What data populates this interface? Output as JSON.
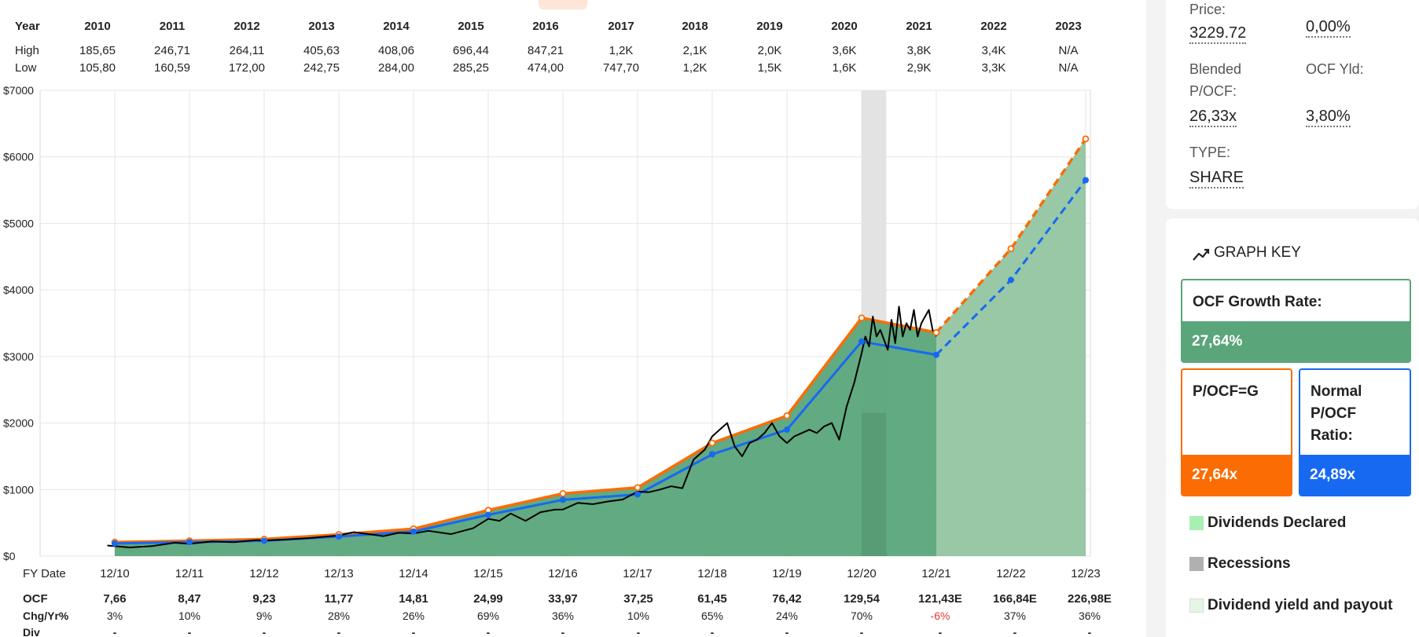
{
  "table": {
    "labels": {
      "year": "Year",
      "high": "High",
      "low": "Low"
    },
    "years": [
      "2010",
      "2011",
      "2012",
      "2013",
      "2014",
      "2015",
      "2016",
      "2017",
      "2018",
      "2019",
      "2020",
      "2021",
      "2022",
      "2023"
    ],
    "high": [
      "185,65",
      "246,71",
      "264,11",
      "405,63",
      "408,06",
      "696,44",
      "847,21",
      "1,2K",
      "2,1K",
      "2,0K",
      "3,6K",
      "3,8K",
      "3,4K",
      "N/A"
    ],
    "low": [
      "105,80",
      "160,59",
      "172,00",
      "242,75",
      "284,00",
      "285,25",
      "474,00",
      "747,70",
      "1,2K",
      "1,5K",
      "1,6K",
      "2,9K",
      "3,3K",
      "N/A"
    ]
  },
  "bottom": {
    "labels": {
      "ocf": "OCF",
      "chg": "Chg/Yr%",
      "div": "Div"
    },
    "ocf": [
      "7,66",
      "8,47",
      "9,23",
      "11,77",
      "14,81",
      "24,99",
      "33,97",
      "37,25",
      "61,45",
      "76,42",
      "129,54",
      "121,43E",
      "166,84E",
      "226,98E"
    ],
    "chg": [
      "3%",
      "10%",
      "9%",
      "28%",
      "26%",
      "69%",
      "36%",
      "10%",
      "65%",
      "24%",
      "70%",
      "-6%",
      "37%",
      "36%"
    ],
    "div": [
      "-",
      "-",
      "-",
      "-",
      "-",
      "-",
      "-",
      "-",
      "-",
      "-",
      "-",
      "-",
      "-",
      "-"
    ]
  },
  "chart_data": {
    "type": "line",
    "x_axis_title": "FY Date",
    "x_ticks": [
      "12/10",
      "12/11",
      "12/12",
      "12/13",
      "12/14",
      "12/15",
      "12/16",
      "12/17",
      "12/18",
      "12/19",
      "12/20",
      "12/21",
      "12/22",
      "12/23"
    ],
    "y_ticks": [
      "$0",
      "$1000",
      "$2000",
      "$3000",
      "$4000",
      "$5000",
      "$6000",
      "$7000"
    ],
    "ylim": [
      0,
      7000
    ],
    "grid": true,
    "colors": {
      "pocf_g": "#fb6c03",
      "normal": "#1769f2",
      "price": "#000000",
      "fill": "#5aa57a",
      "fill_estimate": "#98c8a6",
      "recession": "#e3e3e3"
    },
    "recession": [
      2020.0,
      2020.33
    ],
    "series": [
      {
        "name": "P/OCF=G",
        "x": [
          2010.0,
          2011.0,
          2012.0,
          2013.0,
          2014.0,
          2015.0,
          2016.0,
          2017.0,
          2018.0,
          2019.0,
          2020.0,
          2021.0
        ],
        "values": [
          210,
          230,
          255,
          325,
          410,
          690,
          940,
          1030,
          1700,
          2110,
          3580,
          3360
        ],
        "estimate_x": [
          2021.0,
          2022.0,
          2023.0
        ],
        "estimate_values": [
          3360,
          4620,
          6270
        ]
      },
      {
        "name": "Normal P/OCF Ratio",
        "x": [
          2010.0,
          2011.0,
          2012.0,
          2013.0,
          2014.0,
          2015.0,
          2016.0,
          2017.0,
          2018.0,
          2019.0,
          2020.0,
          2021.0
        ],
        "values": [
          190,
          210,
          230,
          293,
          369,
          620,
          845,
          927,
          1530,
          1900,
          3225,
          3025
        ],
        "estimate_x": [
          2021.0,
          2022.0,
          2023.0
        ],
        "estimate_values": [
          3025,
          4150,
          5650
        ]
      },
      {
        "name": "Price",
        "x": [
          2009.9,
          2010.2,
          2010.5,
          2010.8,
          2011.0,
          2011.3,
          2011.6,
          2011.9,
          2012.0,
          2012.3,
          2012.6,
          2012.8,
          2013.0,
          2013.2,
          2013.4,
          2013.6,
          2013.8,
          2014.0,
          2014.2,
          2014.5,
          2014.8,
          2015.0,
          2015.15,
          2015.3,
          2015.5,
          2015.7,
          2015.9,
          2016.0,
          2016.2,
          2016.4,
          2016.6,
          2016.8,
          2017.0,
          2017.15,
          2017.3,
          2017.45,
          2017.6,
          2017.75,
          2017.9,
          2018.0,
          2018.1,
          2018.2,
          2018.3,
          2018.4,
          2018.5,
          2018.6,
          2018.7,
          2018.8,
          2018.9,
          2019.0,
          2019.1,
          2019.2,
          2019.3,
          2019.4,
          2019.5,
          2019.6,
          2019.7,
          2019.8,
          2019.9,
          2020.0,
          2020.05,
          2020.1,
          2020.15,
          2020.2,
          2020.25,
          2020.3,
          2020.35,
          2020.4,
          2020.45,
          2020.5,
          2020.55,
          2020.6,
          2020.65,
          2020.7,
          2020.75,
          2020.8,
          2020.85,
          2020.9,
          2020.95,
          2021.0
        ],
        "values": [
          160,
          130,
          150,
          200,
          185,
          220,
          210,
          240,
          235,
          250,
          270,
          290,
          310,
          360,
          330,
          300,
          350,
          340,
          380,
          330,
          420,
          560,
          530,
          640,
          530,
          660,
          700,
          700,
          800,
          780,
          820,
          850,
          970,
          960,
          1000,
          1050,
          1020,
          1450,
          1600,
          1800,
          1900,
          2000,
          1650,
          1500,
          1700,
          1750,
          1850,
          2000,
          1800,
          1700,
          1800,
          1850,
          1900,
          1850,
          1950,
          2000,
          1750,
          2250,
          2600,
          3050,
          3300,
          3150,
          3600,
          3300,
          3400,
          3250,
          3100,
          3550,
          3200,
          3750,
          3300,
          3500,
          3400,
          3700,
          3300,
          3500,
          3600,
          3700,
          3400,
          3300
        ]
      }
    ]
  },
  "panel": {
    "price_label": "Price:",
    "price_value": "3229.72",
    "chg_value": "0,00%",
    "blended_label_1": "Blended",
    "blended_label_2": "P/OCF:",
    "blended_value": "26,33x",
    "ocf_yld_label": "OCF Yld:",
    "ocf_yld_value": "3,80%",
    "type_label": "TYPE:",
    "type_value": "SHARE",
    "graph_key_title": "GRAPH KEY",
    "growth_title": "OCF Growth Rate:",
    "growth_value": "27,64%",
    "pg_title": "P/OCF=G",
    "pg_value": "27,64x",
    "norm_title_1": "Normal",
    "norm_title_2": "P/OCF",
    "norm_title_3": "Ratio:",
    "norm_value": "24,89x",
    "legend": [
      {
        "label": "Dividends Declared",
        "color": "#a8efb4"
      },
      {
        "label": "Recessions",
        "color": "#b0b0b0"
      },
      {
        "label": "Dividend yield and payout",
        "color": "#e6f5e6"
      }
    ]
  }
}
